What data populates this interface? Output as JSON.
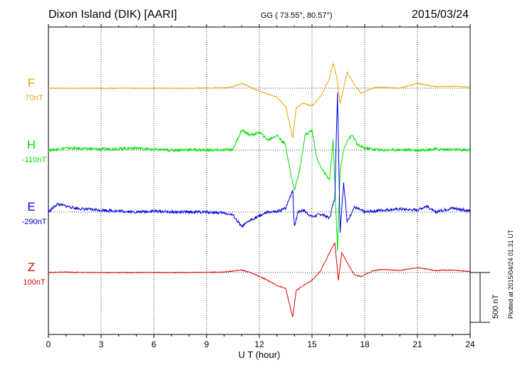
{
  "header": {
    "title": "Dixon Island (DIK)  [AARI]",
    "coords": "GG ( 73.55°,  80.57°)",
    "date": "2015/03/24"
  },
  "footer": {
    "plotted_note": "Plotted at 2015/04/24 01:31  UT",
    "scale_label": "500 nT"
  },
  "chart_data": {
    "type": "line",
    "title": "Dixon Island (DIK)  [AARI]",
    "xlabel": "U T (hour)",
    "ylabel": "",
    "xlim": [
      0,
      24
    ],
    "x_ticks": [
      "0",
      "3",
      "6",
      "9",
      "12",
      "15",
      "18",
      "21",
      "24"
    ],
    "grid": true,
    "scale_bar_nT": 500,
    "series": [
      {
        "name": "F",
        "baseline_label": "70nT",
        "color": "#f0a000",
        "x": [
          0,
          2,
          4,
          6,
          8,
          10,
          10.5,
          11,
          11.5,
          12,
          12.5,
          13,
          13.5,
          13.9,
          14.1,
          14.5,
          15,
          15.5,
          16,
          16.2,
          16.4,
          16.6,
          17,
          17.4,
          17.8,
          18.5,
          19,
          20,
          21,
          22,
          23,
          24
        ],
        "values": [
          0,
          0,
          0,
          0,
          0,
          5,
          15,
          50,
          10,
          -30,
          -60,
          -90,
          -180,
          -500,
          -200,
          -150,
          -180,
          -80,
          100,
          250,
          120,
          -150,
          160,
          40,
          -50,
          5,
          10,
          0,
          50,
          15,
          20,
          10
        ]
      },
      {
        "name": "H",
        "baseline_label": "-110nT",
        "color": "#00e000",
        "x": [
          0,
          1,
          2,
          3,
          4,
          5,
          6,
          7,
          8,
          9,
          10,
          10.5,
          11,
          11.5,
          12,
          12.5,
          13,
          13.5,
          13.8,
          14,
          14.3,
          14.6,
          15,
          15.3,
          15.6,
          16,
          16.2,
          16.45,
          16.6,
          16.8,
          17,
          17.3,
          17.6,
          18,
          19,
          20,
          21,
          22,
          23,
          24
        ],
        "values": [
          0,
          20,
          15,
          10,
          15,
          20,
          5,
          0,
          5,
          0,
          0,
          10,
          200,
          150,
          180,
          100,
          150,
          50,
          -250,
          -400,
          -200,
          150,
          200,
          -100,
          -200,
          -300,
          100,
          -1000,
          -200,
          0,
          100,
          150,
          50,
          20,
          0,
          5,
          0,
          10,
          5,
          0
        ]
      },
      {
        "name": "E",
        "baseline_label": "-290nT",
        "color": "#0000e0",
        "x": [
          0,
          0.5,
          1,
          1.5,
          2,
          3,
          4,
          5,
          6,
          7,
          8,
          9,
          10,
          10.5,
          11,
          11.5,
          12,
          12.5,
          13,
          13.5,
          13.9,
          14,
          14.2,
          14.5,
          15,
          15.5,
          16,
          16.3,
          16.45,
          16.6,
          16.8,
          17,
          17.4,
          18,
          19,
          20,
          21,
          21.5,
          22,
          23,
          24
        ],
        "values": [
          0,
          80,
          60,
          40,
          30,
          20,
          10,
          0,
          10,
          0,
          0,
          0,
          -10,
          -30,
          -150,
          -80,
          -40,
          0,
          0,
          40,
          220,
          -150,
          0,
          20,
          -50,
          -20,
          -60,
          150,
          1200,
          -200,
          300,
          -100,
          50,
          0,
          20,
          30,
          20,
          60,
          0,
          40,
          10
        ]
      },
      {
        "name": "Z",
        "baseline_label": "100nT",
        "color": "#e00000",
        "x": [
          0,
          1,
          2,
          4,
          6,
          8,
          10,
          11,
          11.5,
          12,
          12.5,
          13,
          13.5,
          13.9,
          14.1,
          14.5,
          15,
          15.5,
          16,
          16.3,
          16.5,
          16.7,
          17,
          17.4,
          17.8,
          18.5,
          19,
          20,
          21,
          22,
          23,
          24
        ],
        "values": [
          0,
          5,
          0,
          0,
          0,
          0,
          5,
          25,
          0,
          -40,
          -80,
          -130,
          -160,
          -450,
          -180,
          -130,
          -80,
          20,
          200,
          300,
          -80,
          200,
          100,
          -20,
          -40,
          20,
          30,
          20,
          50,
          20,
          25,
          10
        ]
      }
    ]
  }
}
